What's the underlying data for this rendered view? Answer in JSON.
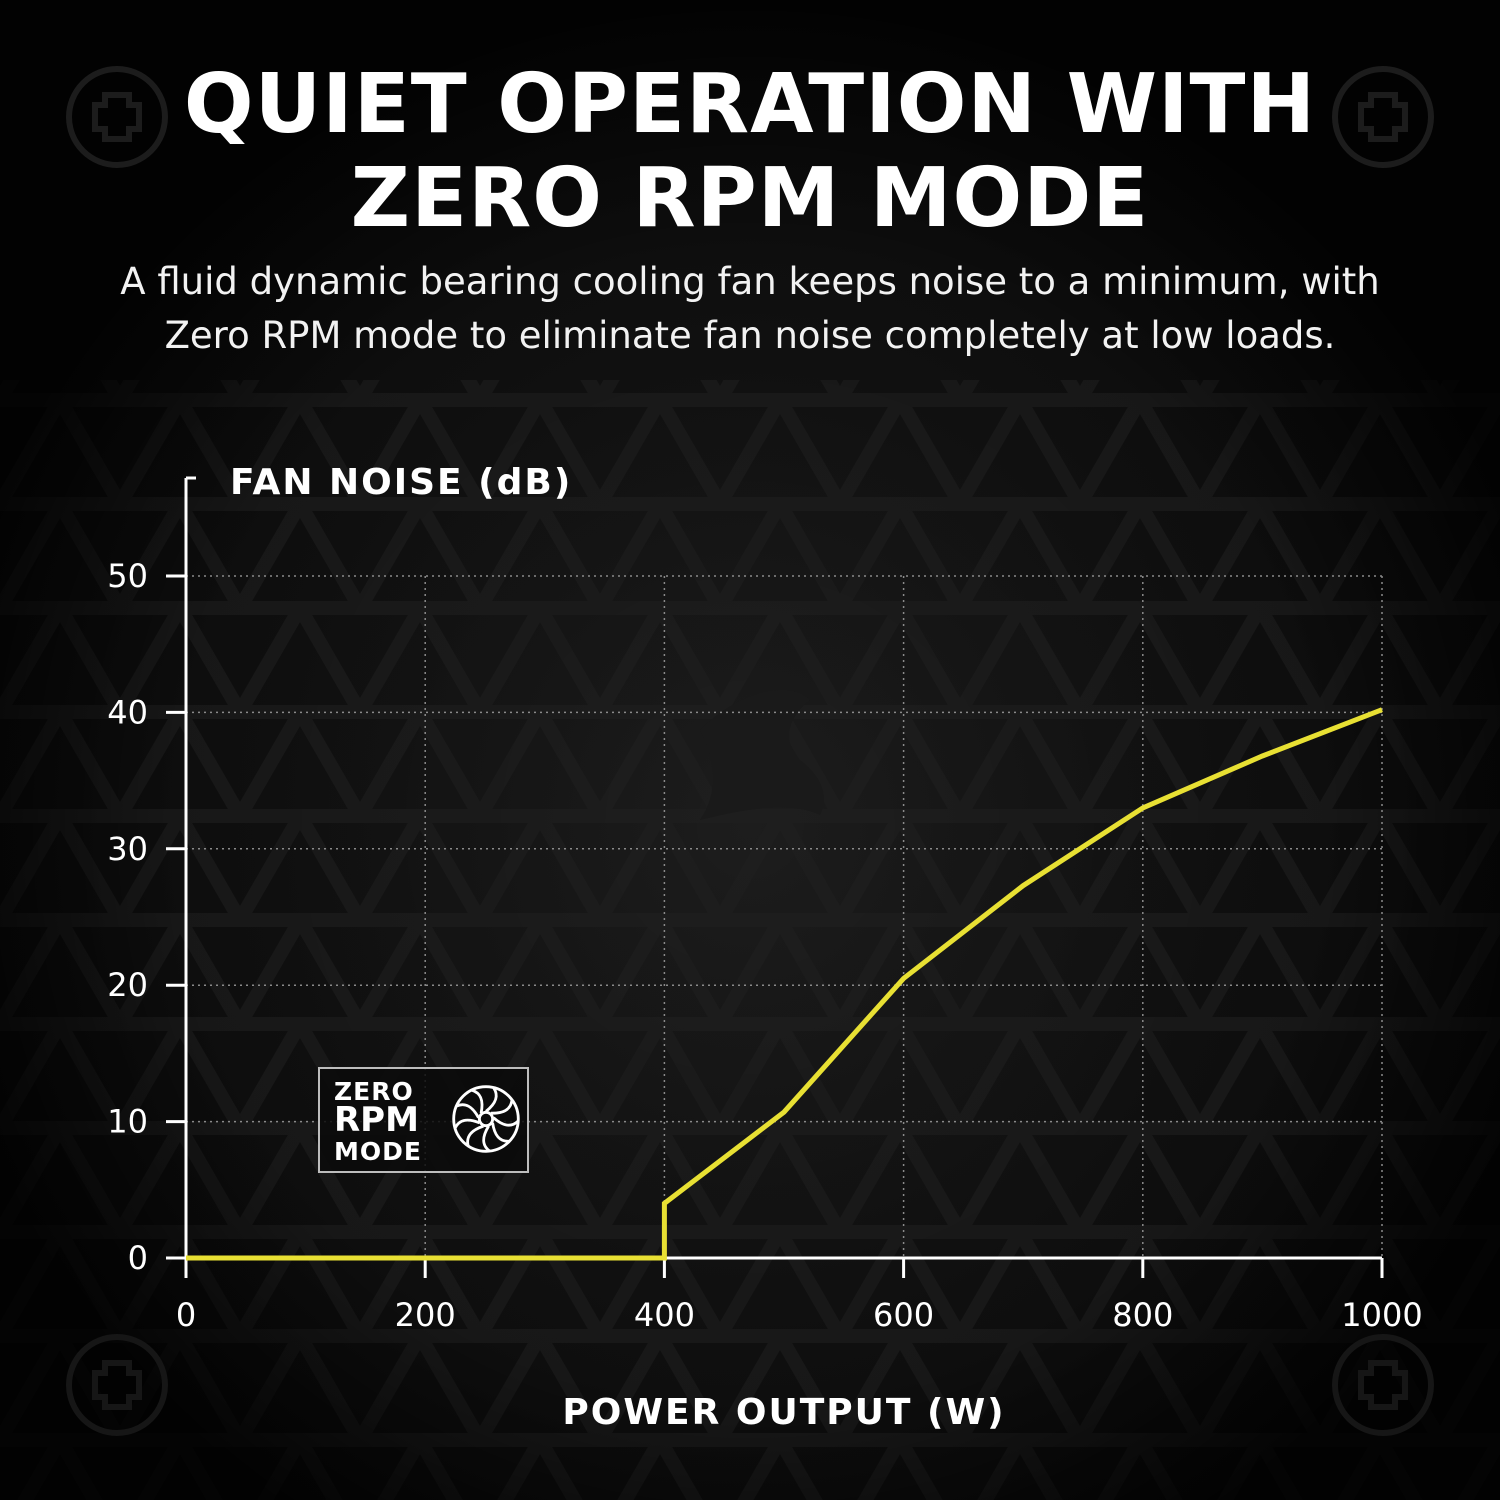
{
  "headline": {
    "line1": "QUIET OPERATION WITH",
    "line2": "ZERO RPM MODE"
  },
  "subtitle": {
    "line1": "A fluid dynamic bearing cooling fan keeps noise to a minimum, with",
    "line2": "Zero RPM mode to eliminate fan noise completely at low loads."
  },
  "badge": {
    "line1": "ZERO",
    "line2": "RPM",
    "line3": "MODE",
    "icon": "fan-icon"
  },
  "colors": {
    "background": "#0c0c0c",
    "line": "#e8e033",
    "axis": "#ffffff",
    "grid": "#8a8a8a"
  },
  "chart_data": {
    "type": "line",
    "title": "",
    "xlabel": "POWER OUTPUT (W)",
    "ylabel": "FAN NOISE (dB)",
    "xlim": [
      0,
      1000
    ],
    "ylim": [
      0,
      50
    ],
    "x_ticks": [
      0,
      200,
      400,
      600,
      800,
      1000
    ],
    "y_ticks": [
      0,
      10,
      20,
      30,
      40,
      50
    ],
    "grid": true,
    "legend": "none",
    "series": [
      {
        "x": [
          0,
          400,
          400,
          500,
          600,
          700,
          800,
          900,
          1000
        ],
        "y": [
          0,
          0,
          4,
          10.7,
          20.5,
          27.3,
          33,
          36.8,
          40.2
        ]
      }
    ]
  }
}
